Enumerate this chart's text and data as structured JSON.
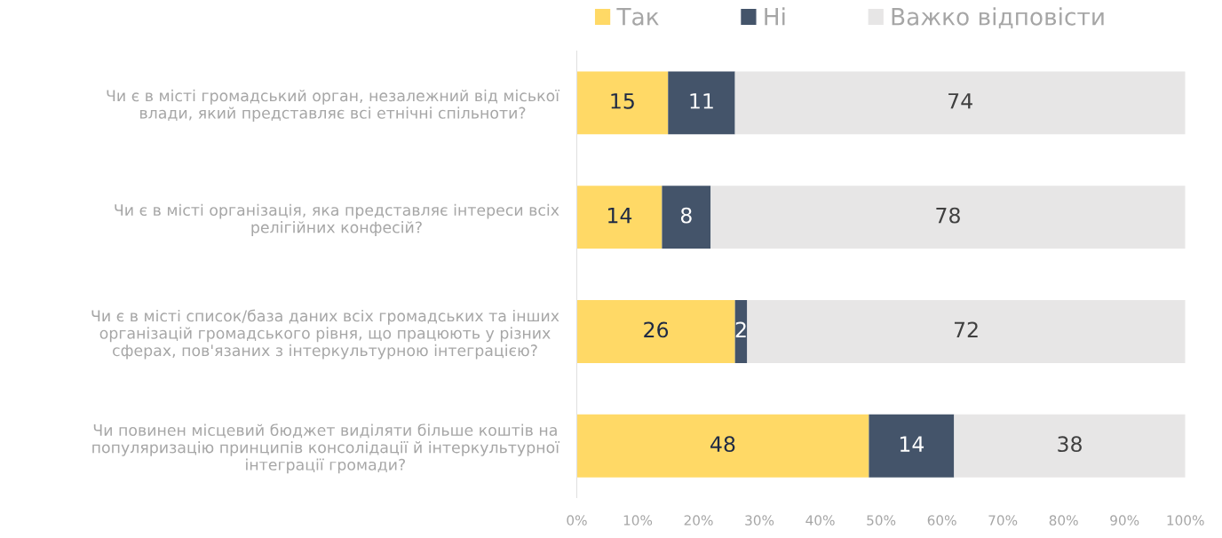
{
  "chart_data": {
    "type": "bar",
    "orientation": "horizontal",
    "stacked": true,
    "categories": [
      "Чи є в місті громадський орган, незалежний від міської\nвлади, який представляє всі етнічні спільноти?",
      "Чи є в місті організація, яка представляє інтереси всіх\nрелігійних конфесій?",
      "Чи є в місті список/база даних всіх громадських та інших\nорганізацій громадського рівня, що працюють у різних\nсферах, пов'язаних з інтеркультурною інтеграцією?",
      "Чи повинен місцевий бюджет виділяти більше коштів на\nпопуляризацію принципів консолідації й інтеркультурної\nінтеграції громади?"
    ],
    "series": [
      {
        "name": "Так",
        "color": "#ffd966",
        "values": [
          15,
          14,
          26,
          48
        ]
      },
      {
        "name": "Ні",
        "color": "#44546a",
        "values": [
          11,
          8,
          2,
          14
        ]
      },
      {
        "name": "Важко відповісти",
        "color": "#e7e6e6",
        "values": [
          74,
          78,
          72,
          38
        ]
      }
    ],
    "xlim": [
      0,
      100
    ],
    "xticks": [
      {
        "value": 0,
        "label": "0%"
      },
      {
        "value": 10,
        "label": "10%"
      },
      {
        "value": 20,
        "label": "20%"
      },
      {
        "value": 30,
        "label": "30%"
      },
      {
        "value": 40,
        "label": "40%"
      },
      {
        "value": 50,
        "label": "50%"
      },
      {
        "value": 60,
        "label": "60%"
      },
      {
        "value": 70,
        "label": "70%"
      },
      {
        "value": 80,
        "label": "80%"
      },
      {
        "value": 90,
        "label": "90%"
      },
      {
        "value": 100,
        "label": "100%"
      }
    ],
    "data_labels": true,
    "legend": "top",
    "grid": false
  }
}
